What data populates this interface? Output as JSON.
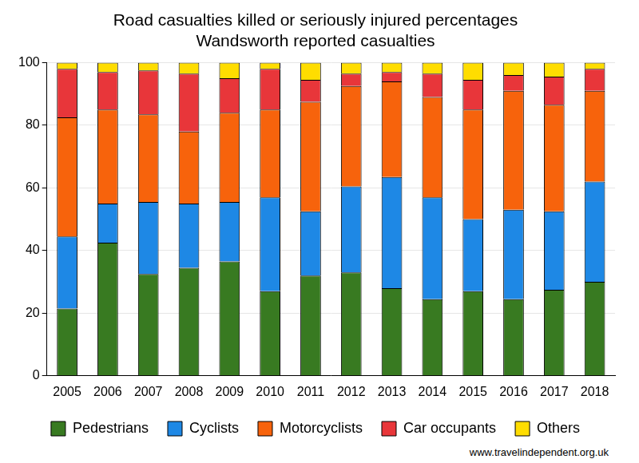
{
  "chart_data": {
    "type": "bar",
    "title": [
      "Road casualties killed or seriously injured percentages",
      "Wandsworth reported casualties"
    ],
    "source": "www.travelindependent.org.uk",
    "stacked": true,
    "grid": true,
    "legend": "bottom",
    "categories": [
      "2005",
      "2006",
      "2007",
      "2008",
      "2009",
      "2010",
      "2011",
      "2012",
      "2013",
      "2014",
      "2015",
      "2016",
      "2017",
      "2018"
    ],
    "ylim": [
      0,
      100
    ],
    "yticks": [
      0,
      20,
      40,
      60,
      80,
      100
    ],
    "series": [
      {
        "name": "Pedestrians",
        "color": "#387a21",
        "values": [
          21.5,
          42.5,
          32.5,
          34.5,
          36.5,
          27,
          32,
          33,
          28,
          24.5,
          27,
          24.5,
          27.5,
          30
        ]
      },
      {
        "name": "Cyclists",
        "color": "#1e88e5",
        "values": [
          23,
          12.5,
          23,
          20.5,
          19,
          30,
          20.5,
          27.5,
          35.5,
          32.5,
          23,
          28.5,
          25,
          32
        ]
      },
      {
        "name": "Motorcyclists",
        "color": "#f7630c",
        "values": [
          38,
          30,
          28,
          23,
          28.5,
          28,
          35,
          32,
          30.5,
          32,
          35,
          38,
          34,
          29
        ]
      },
      {
        "name": "Car occupants",
        "color": "#e8363a",
        "values": [
          15.5,
          12,
          14,
          18.5,
          11,
          13,
          7,
          4,
          3,
          7.5,
          9.5,
          5,
          9,
          7
        ]
      },
      {
        "name": "Others",
        "color": "#ffdd00",
        "values": [
          2,
          3,
          2.5,
          3.5,
          5,
          2,
          5.5,
          3.5,
          3,
          3.5,
          5.5,
          4,
          4.5,
          2
        ]
      }
    ]
  }
}
